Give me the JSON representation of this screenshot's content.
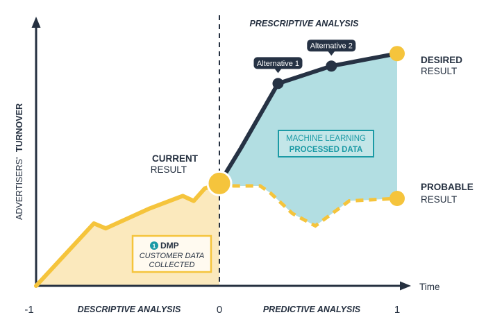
{
  "chart_data": {
    "type": "line",
    "y_axis_label_regular": "ADVERTISERS'",
    "y_axis_label_bold": "TURNOVER",
    "x_axis_label": "Time",
    "x_ticks": [
      "-1",
      "0",
      "1"
    ],
    "xlim": [
      -1,
      1
    ],
    "ylim": [
      0,
      1
    ],
    "grid": false,
    "section_labels": {
      "prescriptive": "PRESCRIPTIVE ANALYSIS",
      "descriptive": "DESCRIPTIVE ANALYSIS",
      "predictive": "PREDICTIVE ANALYSIS"
    },
    "colors": {
      "axis": "#253040",
      "history": "#f5c43c",
      "history_fill": "#fbe9bd",
      "prescriptive": "#263244",
      "prescriptive_fill": "#b2dee2",
      "probable": "#f5c43c",
      "accent_teal": "#1b9aa5"
    },
    "series": [
      {
        "name": "",
        "style": "solid",
        "x": [
          -1,
          -0.685,
          -0.62,
          -0.38,
          -0.2,
          -0.14,
          -0.08,
          0
        ],
        "y": [
          0,
          0.25,
          0.23,
          0.31,
          0.36,
          0.34,
          0.39,
          0.41
        ]
      },
      {
        "name": "",
        "style": "solid",
        "x": [
          0,
          0.12,
          0.33,
          0.63,
          1
        ],
        "y": [
          0.41,
          0.55,
          0.81,
          0.88,
          0.93
        ]
      },
      {
        "name": "",
        "style": "dashed",
        "x": [
          0,
          0.08,
          0.23,
          0.29,
          0.41,
          0.54,
          0.73,
          1
        ],
        "y": [
          0.41,
          0.4,
          0.4,
          0.37,
          0.29,
          0.24,
          0.34,
          0.35
        ]
      }
    ],
    "points": {
      "current": {
        "x": 0,
        "y": 0.41,
        "label_bold": "CURRENT",
        "label_regular": "RESULT"
      },
      "desired": {
        "x": 1,
        "y": 0.93,
        "label_bold": "DESIRED",
        "label_regular": "RESULT"
      },
      "probable": {
        "x": 1,
        "y": 0.35,
        "label_bold": "PROBABLE",
        "label_regular": "RESULT"
      },
      "alternatives": [
        {
          "label": "Alternative 1",
          "x": 0.33,
          "y": 0.81
        },
        {
          "label": "Alternative 2",
          "x": 0.63,
          "y": 0.88
        }
      ]
    },
    "annotations": {
      "ml_box": {
        "line1": "MACHINE LEARNING",
        "line2": "PROCESSED DATA"
      },
      "dmp_box": {
        "badge": "1",
        "title": "DMP",
        "line1": "CUSTOMER DATA",
        "line2": "COLLECTED"
      }
    }
  }
}
